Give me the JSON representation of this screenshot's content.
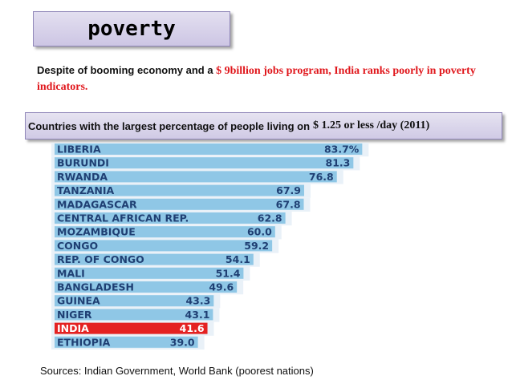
{
  "slide": {
    "title": "poverty",
    "intro_part1": "Despite of booming economy  and a",
    "intro_part2": " $ 9billion jobs program, India ranks poorly in poverty indicators.",
    "subtitle_part1": "Countries with the largest percentage of people living  on",
    "subtitle_part2": "$ 1.25 or less /day (2011)",
    "sources": "Sources: Indian Government, World Bank (poorest nations)"
  },
  "colors": {
    "bar": "#8fc7e6",
    "bar_highlight": "#e42121",
    "label_dark": "#1f3f73",
    "label_highlight": "#ffffff",
    "row_shade": "#e9f1f8"
  },
  "chart_data": {
    "type": "bar",
    "orientation": "horizontal",
    "title": "",
    "xlabel": "",
    "ylabel": "",
    "xlim": [
      0,
      90
    ],
    "highlight": "INDIA",
    "categories": [
      "LIBERIA",
      "BURUNDI",
      "RWANDA",
      "TANZANIA",
      "MADAGASCAR",
      "CENTRAL AFRICAN REP.",
      "MOZAMBIQUE",
      "CONGO",
      "REP. OF CONGO",
      "MALI",
      "BANGLADESH",
      "GUINEA",
      "NIGER",
      "INDIA",
      "ETHIOPIA"
    ],
    "values": [
      83.7,
      81.3,
      76.8,
      67.9,
      67.8,
      62.8,
      60.0,
      59.2,
      54.1,
      51.4,
      49.6,
      43.3,
      43.1,
      41.6,
      39.0
    ],
    "value_labels": [
      "83.7%",
      "81.3",
      "76.8",
      "67.9",
      "67.8",
      "62.8",
      "60.0",
      "59.2",
      "54.1",
      "51.4",
      "49.6",
      "43.3",
      "43.1",
      "41.6",
      "39.0"
    ]
  }
}
